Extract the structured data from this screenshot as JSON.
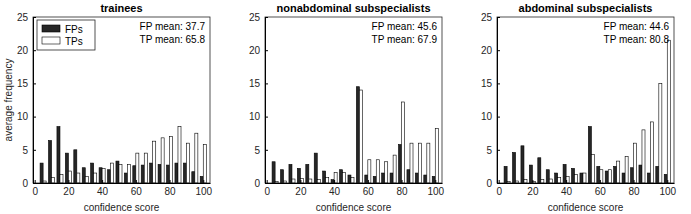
{
  "chart_data": [
    {
      "type": "bar",
      "title": "trainees",
      "xlabel": "confidence score",
      "ylabel": "average frequency",
      "x": [
        5,
        10,
        15,
        20,
        25,
        30,
        35,
        40,
        45,
        50,
        55,
        60,
        65,
        70,
        75,
        80,
        85,
        90,
        95,
        100
      ],
      "series": [
        {
          "name": "FPs",
          "color": "#262626",
          "values": [
            3.0,
            6.4,
            8.5,
            4.5,
            5.0,
            2.3,
            3.0,
            2.3,
            2.0,
            3.3,
            1.5,
            2.6,
            2.7,
            3.0,
            2.8,
            2.7,
            3.0,
            3.0,
            1.7,
            1.0
          ]
        },
        {
          "name": "TPs",
          "color": "#ffffff",
          "values": [
            0.3,
            0.8,
            1.3,
            1.8,
            1.5,
            1.0,
            1.5,
            2.2,
            3.0,
            2.8,
            2.8,
            4.5,
            4.5,
            6.3,
            6.8,
            7.0,
            8.5,
            6.0,
            7.5,
            5.8
          ]
        }
      ],
      "annotations": [
        "FP mean: 37.7",
        "TP mean: 65.8"
      ],
      "legend": "upper left",
      "xlim": [
        -1,
        104
      ],
      "xticks": [
        0,
        20,
        40,
        60,
        80,
        100
      ],
      "ylim": [
        0,
        25
      ],
      "yticks": [
        0,
        5,
        10,
        15,
        20,
        25
      ]
    },
    {
      "type": "bar",
      "title": "nonabdominal subspecialists",
      "xlabel": "confidence score",
      "x": [
        5,
        10,
        15,
        20,
        25,
        30,
        35,
        40,
        45,
        50,
        55,
        60,
        65,
        70,
        75,
        80,
        85,
        90,
        95,
        100
      ],
      "series": [
        {
          "color": "#262626",
          "values": [
            3.2,
            2.0,
            2.8,
            2.2,
            2.8,
            4.5,
            1.8,
            0.5,
            2.0,
            1.2,
            14.5,
            1.2,
            1.0,
            1.5,
            1.5,
            5.8,
            2.0,
            1.5,
            1.2,
            1.0
          ]
        },
        {
          "color": "#ffffff",
          "values": [
            0.2,
            0.3,
            0.6,
            0.7,
            0.6,
            0.5,
            0.8,
            1.6,
            1.6,
            0.8,
            14.0,
            3.5,
            3.5,
            3.2,
            4.2,
            12.2,
            6.0,
            6.0,
            6.0,
            8.2
          ]
        }
      ],
      "annotations": [
        "FP mean: 45.6",
        "TP mean: 67.9"
      ],
      "xlim": [
        -1,
        104
      ],
      "xticks": [
        0,
        20,
        40,
        60,
        80,
        100
      ],
      "ylim": [
        0,
        25
      ],
      "yticks": [
        0,
        5,
        10,
        15,
        20,
        25
      ]
    },
    {
      "type": "bar",
      "title": "abdominal subspecialists",
      "xlabel": "confidence score",
      "x": [
        5,
        10,
        15,
        20,
        25,
        30,
        35,
        40,
        45,
        50,
        55,
        60,
        65,
        70,
        75,
        80,
        85,
        90,
        95,
        100
      ],
      "series": [
        {
          "color": "#262626",
          "values": [
            2.5,
            4.6,
            5.6,
            2.7,
            3.8,
            2.0,
            1.5,
            2.8,
            2.2,
            1.5,
            8.5,
            2.5,
            1.8,
            2.5,
            1.5,
            2.3,
            2.7,
            1.5,
            2.5,
            1.3
          ]
        },
        {
          "color": "#ffffff",
          "values": [
            0.2,
            0.3,
            0.5,
            0.2,
            0.5,
            0.6,
            0.8,
            1.0,
            1.3,
            1.5,
            4.3,
            2.0,
            2.0,
            3.3,
            4.0,
            6.0,
            8.0,
            9.2,
            15.0,
            21.5
          ]
        }
      ],
      "annotations": [
        "FP mean: 44.6",
        "TP mean: 80.8"
      ],
      "xlim": [
        -1,
        104
      ],
      "xticks": [
        0,
        20,
        40,
        60,
        80,
        100
      ],
      "ylim": [
        0,
        25
      ],
      "yticks": [
        0,
        5,
        10,
        15,
        20,
        25
      ]
    }
  ]
}
